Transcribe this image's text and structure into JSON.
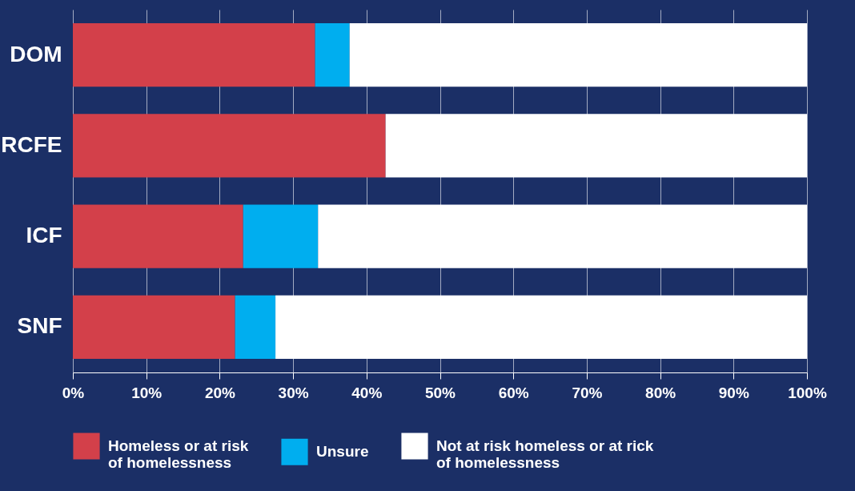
{
  "chart_data": {
    "type": "bar",
    "orientation": "horizontal",
    "stacked": true,
    "categories": [
      "DOM",
      "RCFE",
      "ICF",
      "SNF"
    ],
    "series": [
      {
        "name": "Homeless or at risk of homelessness",
        "color": "#d3404a",
        "values": [
          33.0,
          42.6,
          23.2,
          22.1
        ]
      },
      {
        "name": "Unsure",
        "color": "#00aeef",
        "values": [
          4.7,
          0,
          10.2,
          5.5
        ]
      },
      {
        "name": "Not at risk homeless or at rick of homelessness",
        "color": "#ffffff",
        "values": [
          62.3,
          57.4,
          66.6,
          72.4
        ]
      }
    ],
    "xlim": [
      0,
      100
    ],
    "xticks": [
      {
        "value": 0,
        "label": "0%"
      },
      {
        "value": 10,
        "label": "10%"
      },
      {
        "value": 20,
        "label": "20%"
      },
      {
        "value": 30,
        "label": "30%"
      },
      {
        "value": 40,
        "label": "40%"
      },
      {
        "value": 50,
        "label": "50%"
      },
      {
        "value": 60,
        "label": "60%"
      },
      {
        "value": 70,
        "label": "70%"
      },
      {
        "value": 80,
        "label": "80%"
      },
      {
        "value": 90,
        "label": "90%"
      },
      {
        "value": 100,
        "label": "100%"
      }
    ],
    "grid": "x",
    "legend": "bottom"
  }
}
